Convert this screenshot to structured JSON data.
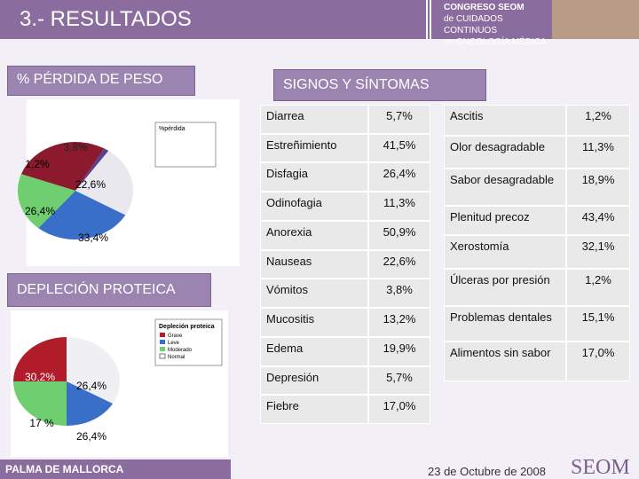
{
  "header": {
    "title": "3.- RESULTADOS",
    "logo_lines": [
      "CONGRESO SEOM",
      "de CUIDADOS CONTINUOS",
      "en ONCOLOGÍA MÉDICA"
    ]
  },
  "weight_loss": {
    "title": "% PÉRDIDA DE PESO",
    "legend_title": "%pérdida",
    "labels": [
      "3,8%",
      "1,2%",
      "22,6%",
      "26,4%",
      "33,4%"
    ]
  },
  "protein": {
    "title": "DEPLECIÓN PROTEICA",
    "legend_title": "Depleción proteica",
    "legend": [
      "Grave",
      "Leve",
      "Moderado",
      "Normal"
    ],
    "labels": [
      "30,2%",
      "26,4%",
      "17 %",
      "26,4%"
    ]
  },
  "symptoms": {
    "title": "SIGNOS Y SÍNTOMAS",
    "left_table": {
      "rows": [
        [
          "Diarrea",
          "5,7%"
        ],
        [
          "Estreñimiento",
          "41,5%"
        ],
        [
          "Disfagia",
          "26,4%"
        ],
        [
          "Odinofagia",
          "11,3%"
        ],
        [
          "Anorexia",
          "50,9%"
        ],
        [
          "Nauseas",
          "22,6%"
        ],
        [
          "Vómitos",
          "3,8%"
        ],
        [
          "Mucositis",
          "13,2%"
        ],
        [
          "Edema",
          "19,9%"
        ],
        [
          "Depresión",
          "5,7%"
        ],
        [
          "Fiebre",
          "17,0%"
        ]
      ]
    },
    "right_table": {
      "rows": [
        [
          "Ascitis",
          "1,2%"
        ],
        [
          "Olor desagradable",
          "11,3%"
        ],
        [
          "Sabor desagradable",
          "18,9%"
        ],
        [
          "Plenitud precoz",
          "43,4%"
        ],
        [
          "Xerostomía",
          "32,1%"
        ],
        [
          "Úlceras por presión",
          "1,2%"
        ],
        [
          "Problemas dentales",
          "15,1%"
        ],
        [
          "Alimentos sin sabor",
          "17,0%"
        ]
      ]
    }
  },
  "footer": {
    "place": "PALMA DE MALLORCA",
    "date": "23 de Octubre de 2008",
    "brand": "SEOM"
  }
}
